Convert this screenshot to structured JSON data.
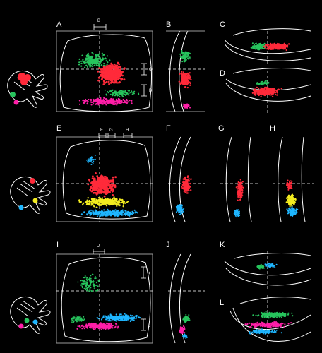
{
  "colors": {
    "background": "#000000",
    "red": "#ff2a3a",
    "green": "#27c45d",
    "magenta": "#ff1fa8",
    "yellow": "#f3ec20",
    "cyan": "#1fb6ff",
    "outline": "#ffffff"
  },
  "row1": {
    "panel_a": "A",
    "panel_b": "B",
    "panel_c": "C",
    "panel_d": "D",
    "marker_b": "B",
    "marker_c": "C",
    "marker_d": "D"
  },
  "row2": {
    "panel_e": "E",
    "panel_f": "F",
    "panel_g": "G",
    "panel_h": "H",
    "marker_f": "F",
    "marker_g": "G",
    "marker_h": "H"
  },
  "row3": {
    "panel_i": "I",
    "panel_j": "J",
    "panel_k": "K",
    "panel_l": "L",
    "marker_j": "J",
    "marker_k": "K",
    "marker_l": "L"
  },
  "icons": [
    "hand-injection-icon-1",
    "hand-injection-icon-2",
    "hand-injection-icon-3"
  ]
}
